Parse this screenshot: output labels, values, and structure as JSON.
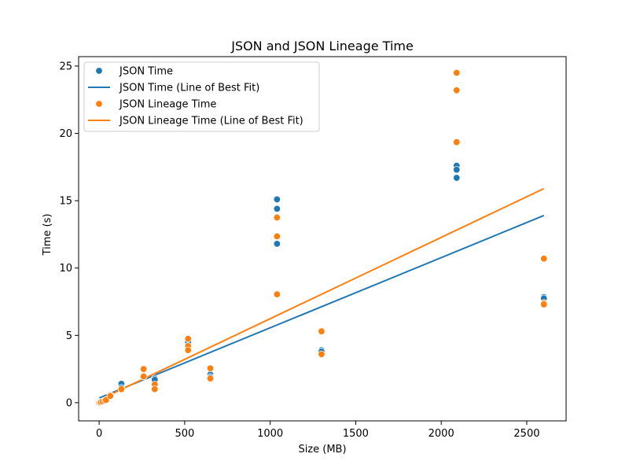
{
  "chart_data": {
    "type": "scatter",
    "title": "JSON and JSON Lineage Time",
    "xlabel": "Size (MB)",
    "ylabel": "Time (s)",
    "xlim": [
      -120,
      2730
    ],
    "ylim": [
      -1.35,
      25.7
    ],
    "xticks": [
      0,
      500,
      1000,
      1500,
      2000,
      2500
    ],
    "yticks": [
      0,
      5,
      10,
      15,
      20,
      25
    ],
    "grid": false,
    "legend_position": "top-left",
    "series": [
      {
        "name": "JSON Time",
        "kind": "scatter",
        "color": "#1f77b4",
        "points": [
          [
            0,
            0.05
          ],
          [
            5,
            0.05
          ],
          [
            10,
            0.08
          ],
          [
            20,
            0.1
          ],
          [
            33,
            0.15
          ],
          [
            40,
            0.2
          ],
          [
            65,
            0.55
          ],
          [
            130,
            1.4
          ],
          [
            130,
            1.1
          ],
          [
            260,
            2.0
          ],
          [
            260,
            1.95
          ],
          [
            325,
            1.8
          ],
          [
            325,
            1.7
          ],
          [
            325,
            1.3
          ],
          [
            520,
            4.5
          ],
          [
            520,
            4.1
          ],
          [
            520,
            4.0
          ],
          [
            650,
            2.1
          ],
          [
            650,
            1.9
          ],
          [
            1040,
            15.1
          ],
          [
            1040,
            14.4
          ],
          [
            1040,
            11.8
          ],
          [
            1300,
            3.9
          ],
          [
            1300,
            3.8
          ],
          [
            2090,
            17.6
          ],
          [
            2090,
            17.3
          ],
          [
            2090,
            16.7
          ],
          [
            2600,
            7.85
          ],
          [
            2600,
            7.75
          ]
        ]
      },
      {
        "name": "JSON Time (Line of Best Fit)",
        "kind": "line",
        "color": "#1f77b4",
        "x": [
          0,
          2600
        ],
        "y": [
          0.35,
          13.9
        ]
      },
      {
        "name": "JSON Lineage Time",
        "kind": "scatter",
        "color": "#ff7f0e",
        "points": [
          [
            0,
            0.0
          ],
          [
            5,
            0.0
          ],
          [
            10,
            0.05
          ],
          [
            20,
            0.1
          ],
          [
            33,
            0.15
          ],
          [
            40,
            0.2
          ],
          [
            65,
            0.5
          ],
          [
            130,
            1.0
          ],
          [
            260,
            2.5
          ],
          [
            260,
            1.95
          ],
          [
            325,
            1.35
          ],
          [
            325,
            1.0
          ],
          [
            520,
            4.75
          ],
          [
            520,
            4.2
          ],
          [
            520,
            3.9
          ],
          [
            650,
            2.55
          ],
          [
            650,
            1.8
          ],
          [
            1040,
            13.75
          ],
          [
            1040,
            12.35
          ],
          [
            1040,
            8.05
          ],
          [
            1300,
            5.3
          ],
          [
            1300,
            3.6
          ],
          [
            2090,
            24.5
          ],
          [
            2090,
            23.2
          ],
          [
            2090,
            19.35
          ],
          [
            2600,
            10.7
          ],
          [
            2600,
            7.4
          ],
          [
            2600,
            7.3
          ]
        ]
      },
      {
        "name": "JSON Lineage Time (Line of Best Fit)",
        "kind": "line",
        "color": "#ff7f0e",
        "x": [
          0,
          2600
        ],
        "y": [
          0.2,
          15.9
        ]
      }
    ]
  }
}
